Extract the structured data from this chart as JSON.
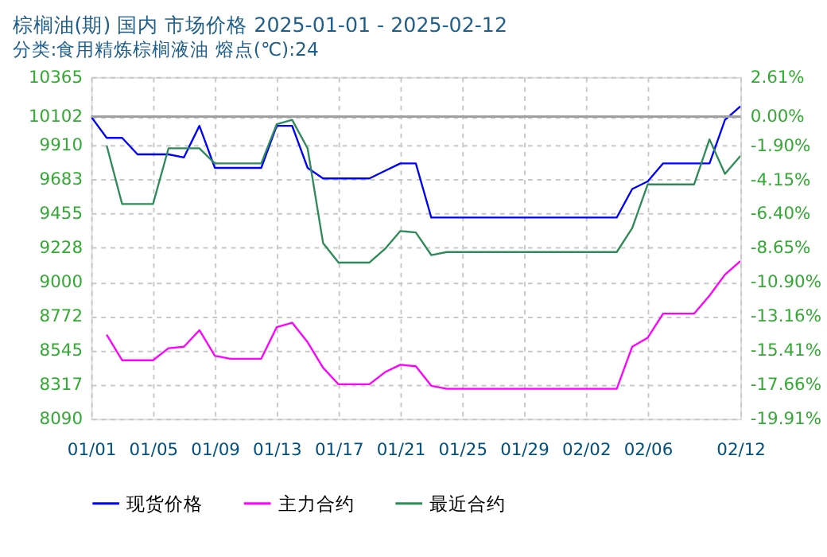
{
  "chart_data": {
    "type": "line",
    "title": "棕榈油(期) 国内 市场价格 2025-01-01 - 2025-02-12",
    "subtitle": "分类:食用精炼棕榈液油 熔点(℃):24",
    "x": [
      "2025-01-01",
      "2025-01-02",
      "2025-01-03",
      "2025-01-04",
      "2025-01-05",
      "2025-01-06",
      "2025-01-07",
      "2025-01-08",
      "2025-01-09",
      "2025-01-10",
      "2025-01-11",
      "2025-01-12",
      "2025-01-13",
      "2025-01-14",
      "2025-01-15",
      "2025-01-16",
      "2025-01-17",
      "2025-01-18",
      "2025-01-19",
      "2025-01-20",
      "2025-01-21",
      "2025-01-22",
      "2025-01-23",
      "2025-01-24",
      "2025-01-25",
      "2025-01-26",
      "2025-01-27",
      "2025-01-28",
      "2025-01-29",
      "2025-01-30",
      "2025-01-31",
      "2025-02-01",
      "2025-02-02",
      "2025-02-03",
      "2025-02-04",
      "2025-02-05",
      "2025-02-06",
      "2025-02-07",
      "2025-02-08",
      "2025-02-09",
      "2025-02-10",
      "2025-02-11",
      "2025-02-12"
    ],
    "series": [
      {
        "name": "现货价格",
        "color": "#0000ff",
        "values": [
          10100,
          9960,
          9960,
          9850,
          9850,
          9850,
          9830,
          10040,
          9760,
          9760,
          9760,
          9760,
          10040,
          10040,
          9760,
          9690,
          9690,
          9690,
          9690,
          9740,
          9790,
          9790,
          9430,
          9430,
          9430,
          9430,
          9430,
          9430,
          9430,
          9430,
          9430,
          9430,
          9430,
          9430,
          9430,
          9620,
          9670,
          9790,
          9790,
          9790,
          9790,
          10080,
          10170
        ]
      },
      {
        "name": "主力合约",
        "color": "#ff00ff",
        "values": [
          null,
          8650,
          8480,
          8480,
          8480,
          8560,
          8570,
          8680,
          8510,
          8490,
          8490,
          8490,
          8700,
          8730,
          8600,
          8430,
          8320,
          8320,
          8320,
          8400,
          8450,
          8440,
          8310,
          8290,
          8290,
          8290,
          8290,
          8290,
          8290,
          8290,
          8290,
          8290,
          8290,
          8290,
          8290,
          8570,
          8630,
          8790,
          8790,
          8790,
          8910,
          9050,
          9140
        ]
      },
      {
        "name": "最近合约",
        "color": "#2e8b57",
        "values": [
          null,
          9910,
          9520,
          9520,
          9520,
          9890,
          9890,
          9890,
          9790,
          9790,
          9790,
          9790,
          10050,
          10080,
          9890,
          9260,
          9130,
          9130,
          9130,
          9220,
          9340,
          9330,
          9180,
          9200,
          9200,
          9200,
          9200,
          9200,
          9200,
          9200,
          9200,
          9200,
          9200,
          9200,
          9200,
          9360,
          9650,
          9650,
          9650,
          9650,
          9950,
          9720,
          9840
        ]
      }
    ],
    "xlim": [
      "2025-01-01",
      "2025-02-12"
    ],
    "xticks": [
      {
        "value": "2025-01-01",
        "label": "01/01"
      },
      {
        "value": "2025-01-05",
        "label": "01/05"
      },
      {
        "value": "2025-01-09",
        "label": "01/09"
      },
      {
        "value": "2025-01-13",
        "label": "01/13"
      },
      {
        "value": "2025-01-17",
        "label": "01/17"
      },
      {
        "value": "2025-01-21",
        "label": "01/21"
      },
      {
        "value": "2025-01-25",
        "label": "01/25"
      },
      {
        "value": "2025-01-29",
        "label": "01/29"
      },
      {
        "value": "2025-02-02",
        "label": "02/02"
      },
      {
        "value": "2025-02-06",
        "label": "02/06"
      },
      {
        "value": "2025-02-12",
        "label": "02/12"
      }
    ],
    "ylim": [
      8090,
      10365
    ],
    "yticks": [
      8090,
      8317,
      8545,
      8772,
      9000,
      9228,
      9455,
      9683,
      9910,
      10102,
      10365
    ],
    "y2lim": [
      -19.91,
      2.61
    ],
    "y2ticks": [
      {
        "value": -19.91,
        "label": "-19.91%"
      },
      {
        "value": -17.66,
        "label": "-17.66%"
      },
      {
        "value": -15.41,
        "label": "-15.41%"
      },
      {
        "value": -13.16,
        "label": "-13.16%"
      },
      {
        "value": -10.9,
        "label": "-10.90%"
      },
      {
        "value": -8.65,
        "label": "-8.65%"
      },
      {
        "value": -6.4,
        "label": "-6.40%"
      },
      {
        "value": -4.15,
        "label": "-4.15%"
      },
      {
        "value": -1.9,
        "label": "-1.90%"
      },
      {
        "value": 0,
        "label": "0.00%"
      },
      {
        "value": 2.61,
        "label": "2.61%"
      }
    ],
    "ref_lines": [
      {
        "axis": "y2",
        "value": 0,
        "color": "#a0a0a0"
      }
    ],
    "grid": true,
    "legend": "bottom",
    "marker": "none",
    "line_style": "solid"
  }
}
